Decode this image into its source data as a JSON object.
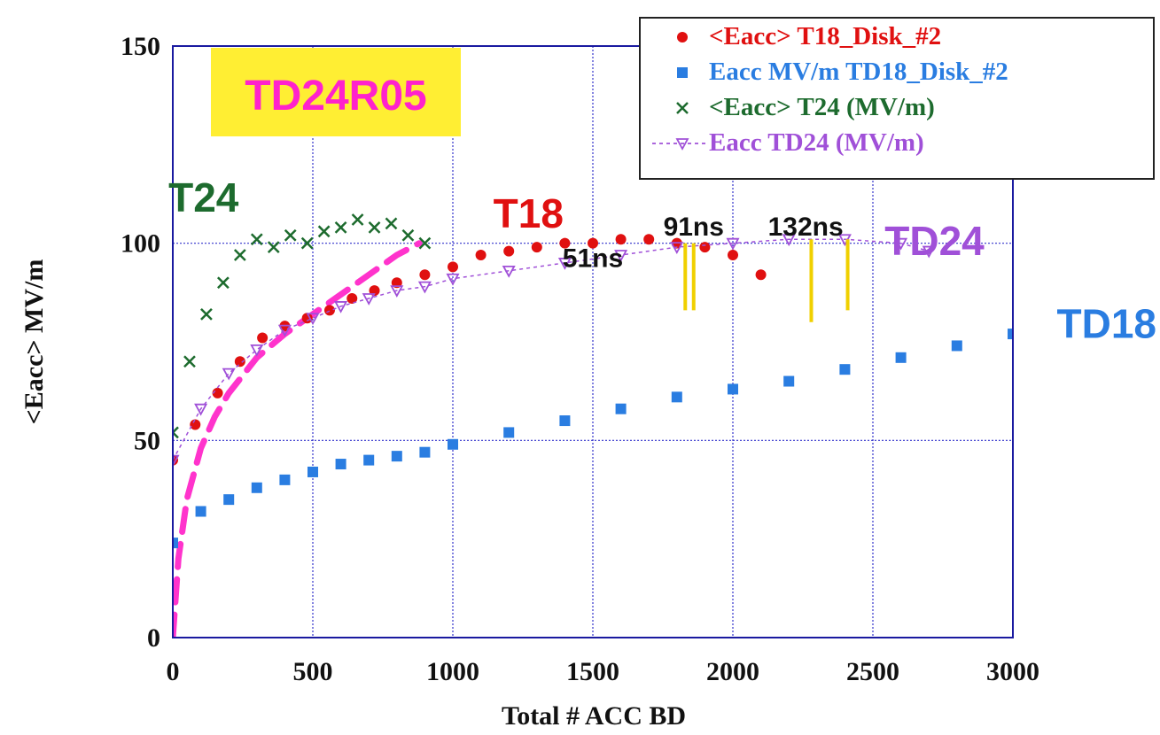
{
  "chart_data": {
    "type": "scatter",
    "title": "",
    "xlabel": "Total # ACC BD",
    "ylabel": "<Eacc>  MV/m",
    "xlim": [
      0,
      3000
    ],
    "ylim": [
      0,
      150
    ],
    "xticks": [
      0,
      500,
      1000,
      1500,
      2000,
      2500,
      3000
    ],
    "yticks": [
      0,
      50,
      100,
      150
    ],
    "grid": true,
    "legend_position": "top-right",
    "colors": {
      "T18": "#e01010",
      "TD18": "#2a7de1",
      "T24": "#1d6b2e",
      "TD24": "#a050d8",
      "fit": "#ff33cc",
      "markers": "#f0d000",
      "grid": "#3333cc",
      "tag_bg": "#ffee33"
    },
    "tag": "TD24R05",
    "series": [
      {
        "name": "<Eacc>  T18_Disk_#2",
        "label": "T18",
        "marker": "circle",
        "x": [
          0,
          80,
          160,
          240,
          320,
          400,
          480,
          560,
          640,
          720,
          800,
          900,
          1000,
          1100,
          1200,
          1300,
          1400,
          1500,
          1600,
          1700,
          1800,
          1900,
          2000,
          2100
        ],
        "y": [
          45,
          54,
          62,
          70,
          76,
          79,
          81,
          83,
          86,
          88,
          90,
          92,
          94,
          97,
          98,
          99,
          100,
          100,
          101,
          101,
          100,
          99,
          97,
          92
        ]
      },
      {
        "name": "Eacc MV/m  TD18_Disk_#2",
        "label": "TD18",
        "marker": "square",
        "x": [
          0,
          100,
          200,
          300,
          400,
          500,
          600,
          700,
          800,
          900,
          1000,
          1200,
          1400,
          1600,
          1800,
          2000,
          2200,
          2400,
          2600,
          2800,
          3000
        ],
        "y": [
          24,
          32,
          35,
          38,
          40,
          42,
          44,
          45,
          46,
          47,
          49,
          52,
          55,
          58,
          61,
          63,
          65,
          68,
          71,
          74,
          77
        ]
      },
      {
        "name": "<Eacc>  T24 (MV/m)",
        "label": "T24",
        "marker": "x",
        "x": [
          0,
          60,
          120,
          180,
          240,
          300,
          360,
          420,
          480,
          540,
          600,
          660,
          720,
          780,
          840,
          900
        ],
        "y": [
          52,
          70,
          82,
          90,
          97,
          101,
          99,
          102,
          100,
          103,
          104,
          106,
          104,
          105,
          102,
          100
        ]
      },
      {
        "name": "Eacc TD24 (MV/m)",
        "label": "TD24",
        "marker": "triangle-down",
        "x": [
          0,
          100,
          200,
          300,
          400,
          500,
          600,
          700,
          800,
          900,
          1000,
          1200,
          1400,
          1600,
          1800,
          2000,
          2200,
          2400,
          2600,
          2700
        ],
        "y": [
          45,
          58,
          67,
          73,
          78,
          81,
          84,
          86,
          88,
          89,
          91,
          93,
          95,
          97,
          99,
          100,
          101,
          101,
          100,
          98
        ]
      }
    ],
    "fit_line": {
      "style": "dashed",
      "x": [
        0,
        20,
        50,
        100,
        150,
        200,
        300,
        400,
        500,
        600,
        700,
        800,
        880
      ],
      "y": [
        0,
        20,
        35,
        48,
        56,
        62,
        71,
        77,
        82,
        87,
        92,
        97,
        100
      ]
    },
    "pulse_markers": [
      {
        "label": "51ns",
        "x": 1830,
        "y_top": 100,
        "y_bottom": 83
      },
      {
        "label": "91ns",
        "x": 1860,
        "y_top": 100,
        "y_bottom": 83
      },
      {
        "label": "132ns",
        "x": 2280,
        "y_top": 101,
        "y_bottom": 80
      },
      {
        "label": "",
        "x": 2410,
        "y_top": 101,
        "y_bottom": 83
      }
    ],
    "annotations": [
      {
        "text": "T24",
        "x": 110,
        "y": 108,
        "series": "T24"
      },
      {
        "text": "T18",
        "x": 1270,
        "y": 104,
        "series": "T18"
      },
      {
        "text": "51ns",
        "x": 1500,
        "y": 94,
        "series": "none"
      },
      {
        "text": "91ns",
        "x": 1860,
        "y": 102,
        "series": "none"
      },
      {
        "text": "132ns",
        "x": 2260,
        "y": 102,
        "series": "none"
      },
      {
        "text": "TD24",
        "x": 2720,
        "y": 97,
        "series": "TD24"
      },
      {
        "text": "TD18",
        "x": 3070,
        "y": 76,
        "series": "TD18"
      }
    ]
  }
}
